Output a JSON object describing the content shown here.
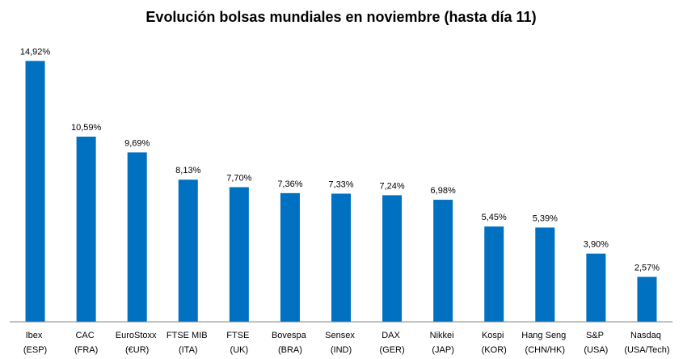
{
  "chart_data": {
    "type": "bar",
    "title": "Evolución bolsas mundiales en noviembre (hasta día 11)",
    "categories": [
      "Ibex (ESP)",
      "CAC (FRA)",
      "EuroStoxx (€UR)",
      "FTSE MIB (ITA)",
      "FTSE (UK)",
      "Bovespa (BRA)",
      "Sensex (IND)",
      "DAX (GER)",
      "Nikkei (JAP)",
      "Kospi (KOR)",
      "Hang Seng (CHN/HK)",
      "S&P (USA)",
      "Nasdaq (USA/Tech)"
    ],
    "values": [
      14.92,
      10.59,
      9.69,
      8.13,
      7.7,
      7.36,
      7.33,
      7.24,
      6.98,
      5.45,
      5.39,
      3.9,
      2.57
    ],
    "data_labels": [
      "14,92%",
      "10,59%",
      "9,69%",
      "8,13%",
      "7,70%",
      "7,36%",
      "7,33%",
      "7,24%",
      "6,98%",
      "5,45%",
      "5,39%",
      "3,90%",
      "2,57%"
    ],
    "ylim": [
      0,
      16
    ],
    "grid": false,
    "legend": false,
    "colors": {
      "bar": "#0070C0",
      "axis": "#868686",
      "text": "#000000"
    }
  }
}
